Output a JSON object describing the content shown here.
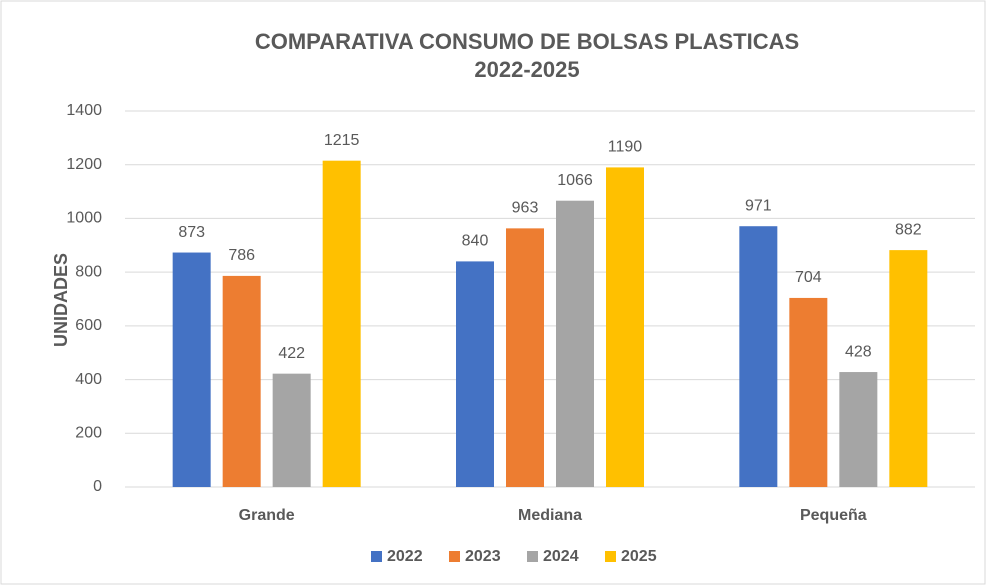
{
  "chart_data": {
    "type": "bar",
    "title": "COMPARATIVA CONSUMO DE BOLSAS PLASTICAS 2022-2025",
    "y_label": "UNIDADES",
    "categories": [
      "Grande",
      "Mediana",
      "Pequeña"
    ],
    "series": [
      {
        "name": "2022",
        "color": "#4472c4",
        "values": [
          873,
          840,
          971
        ]
      },
      {
        "name": "2023",
        "color": "#ed7d31",
        "values": [
          786,
          963,
          704
        ]
      },
      {
        "name": "2024",
        "color": "#a5a5a5",
        "values": [
          422,
          1066,
          428
        ]
      },
      {
        "name": "2025",
        "color": "#ffc000",
        "values": [
          1215,
          1190,
          882
        ]
      }
    ],
    "ylim": [
      0,
      1400
    ],
    "yticks": [
      0,
      200,
      400,
      600,
      800,
      1000,
      1200,
      1400
    ],
    "grid": true,
    "legend": "bottom"
  }
}
